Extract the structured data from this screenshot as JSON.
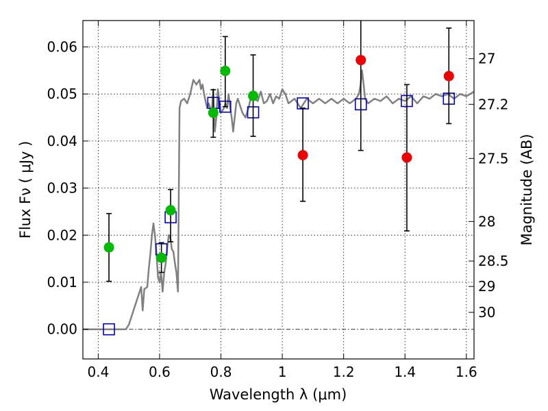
{
  "chart_data": {
    "type": "scatter",
    "xlabel": "Wavelength  λ (μm)",
    "ylabel": "Flux  Fν  ( μJy )",
    "ylabel_right": "Magnitude (AB)",
    "xlim": [
      0.35,
      1.625
    ],
    "ylim": [
      -0.0063,
      0.0656
    ],
    "grid": true,
    "x_ticks": [
      0.4,
      0.6,
      0.8,
      1.0,
      1.2,
      1.4,
      1.6
    ],
    "x_tick_labels": [
      "0.4",
      "0.6",
      "0.8",
      "1",
      "1.2",
      "1.4",
      "1.6"
    ],
    "y_ticks": [
      0.0,
      0.01,
      0.02,
      0.03,
      0.04,
      0.05,
      0.06
    ],
    "y_tick_labels": [
      "0.00",
      "0.01",
      "0.02",
      "0.03",
      "0.04",
      "0.05",
      "0.06"
    ],
    "mag_ticks": [
      {
        "label": "27",
        "flux": 0.0575
      },
      {
        "label": "27.2",
        "flux": 0.0478
      },
      {
        "label": "27.5",
        "flux": 0.0363
      },
      {
        "label": "28",
        "flux": 0.0229
      },
      {
        "label": "28.5",
        "flux": 0.0145
      },
      {
        "label": "29",
        "flux": 0.0091
      },
      {
        "label": "30",
        "flux": 0.0036
      }
    ],
    "zero_line": 0.0,
    "series": [
      {
        "style": "green-circle",
        "color": "#00bb00",
        "x": [
          0.435,
          0.606,
          0.636,
          0.775,
          0.814,
          0.905
        ],
        "y": [
          0.0174,
          0.0152,
          0.0253,
          0.046,
          0.0549,
          0.0496
        ],
        "err_low": [
          0.0102,
          0.0121,
          0.0186,
          0.0408,
          0.0473,
          0.041
        ],
        "err_high": [
          0.0246,
          0.0184,
          0.0297,
          0.0509,
          0.0622,
          0.0583
        ]
      },
      {
        "style": "red-circle",
        "color": "#ee0000",
        "x": [
          1.067,
          1.256,
          1.406,
          1.543
        ],
        "y": [
          0.037,
          0.0572,
          0.0365,
          0.0538
        ],
        "err_low": [
          0.0272,
          0.038,
          0.0209,
          0.0437
        ],
        "err_high": [
          0.047,
          0.066,
          0.052,
          0.064
        ]
      },
      {
        "style": "blue-square",
        "color": "#0000cc",
        "x": [
          0.435,
          0.606,
          0.636,
          0.775,
          0.814,
          0.905,
          1.067,
          1.256,
          1.406,
          1.543
        ],
        "y": [
          0.0,
          0.017,
          0.0238,
          0.0481,
          0.0473,
          0.0461,
          0.048,
          0.0478,
          0.0485,
          0.049
        ]
      },
      {
        "style": "model-line",
        "color": "#808080",
        "x": [
          0.35,
          0.49,
          0.5,
          0.52,
          0.53,
          0.54,
          0.545,
          0.55,
          0.56,
          0.565,
          0.57,
          0.575,
          0.58,
          0.585,
          0.59,
          0.595,
          0.6,
          0.605,
          0.61,
          0.615,
          0.62,
          0.625,
          0.63,
          0.635,
          0.64,
          0.645,
          0.65,
          0.655,
          0.66,
          0.665,
          0.67,
          0.68,
          0.69,
          0.7,
          0.71,
          0.72,
          0.73,
          0.735,
          0.74,
          0.745,
          0.75,
          0.755,
          0.76,
          0.765,
          0.77,
          0.775,
          0.78,
          0.785,
          0.79,
          0.8,
          0.81,
          0.815,
          0.82,
          0.825,
          0.83,
          0.835,
          0.84,
          0.85,
          0.855,
          0.86,
          0.865,
          0.87,
          0.88,
          0.89,
          0.9,
          0.91,
          0.92,
          0.93,
          0.94,
          0.95,
          0.96,
          0.97,
          0.98,
          0.99,
          1.0,
          1.01,
          1.02,
          1.04,
          1.06,
          1.08,
          1.1,
          1.12,
          1.14,
          1.16,
          1.18,
          1.2,
          1.22,
          1.24,
          1.25,
          1.255,
          1.26,
          1.265,
          1.27,
          1.28,
          1.3,
          1.32,
          1.34,
          1.36,
          1.38,
          1.4,
          1.42,
          1.44,
          1.46,
          1.48,
          1.5,
          1.52,
          1.54,
          1.56,
          1.58,
          1.6,
          1.625
        ],
        "y": [
          0.0,
          0.0,
          0.001,
          0.005,
          0.007,
          0.009,
          0.004,
          0.0085,
          0.009,
          0.013,
          0.016,
          0.02,
          0.0225,
          0.02,
          0.016,
          0.011,
          0.01,
          0.012,
          0.008,
          0.012,
          0.014,
          0.0175,
          0.02,
          0.0195,
          0.017,
          0.0165,
          0.014,
          0.012,
          0.008,
          0.047,
          0.0485,
          0.049,
          0.048,
          0.05,
          0.053,
          0.052,
          0.053,
          0.051,
          0.052,
          0.05,
          0.0485,
          0.047,
          0.048,
          0.047,
          0.046,
          0.051,
          0.042,
          0.045,
          0.051,
          0.046,
          0.047,
          0.048,
          0.047,
          0.05,
          0.047,
          0.045,
          0.042,
          0.048,
          0.049,
          0.048,
          0.047,
          0.046,
          0.045,
          0.047,
          0.05,
          0.049,
          0.0485,
          0.0505,
          0.048,
          0.0485,
          0.05,
          0.048,
          0.0495,
          0.049,
          0.051,
          0.05,
          0.048,
          0.049,
          0.047,
          0.049,
          0.048,
          0.049,
          0.048,
          0.049,
          0.048,
          0.049,
          0.048,
          0.049,
          0.05,
          0.052,
          0.055,
          0.052,
          0.049,
          0.048,
          0.049,
          0.0485,
          0.0495,
          0.048,
          0.049,
          0.0485,
          0.0495,
          0.048,
          0.0495,
          0.049,
          0.05,
          0.0495,
          0.05,
          0.049,
          0.05,
          0.0495,
          0.0505
        ]
      }
    ]
  }
}
